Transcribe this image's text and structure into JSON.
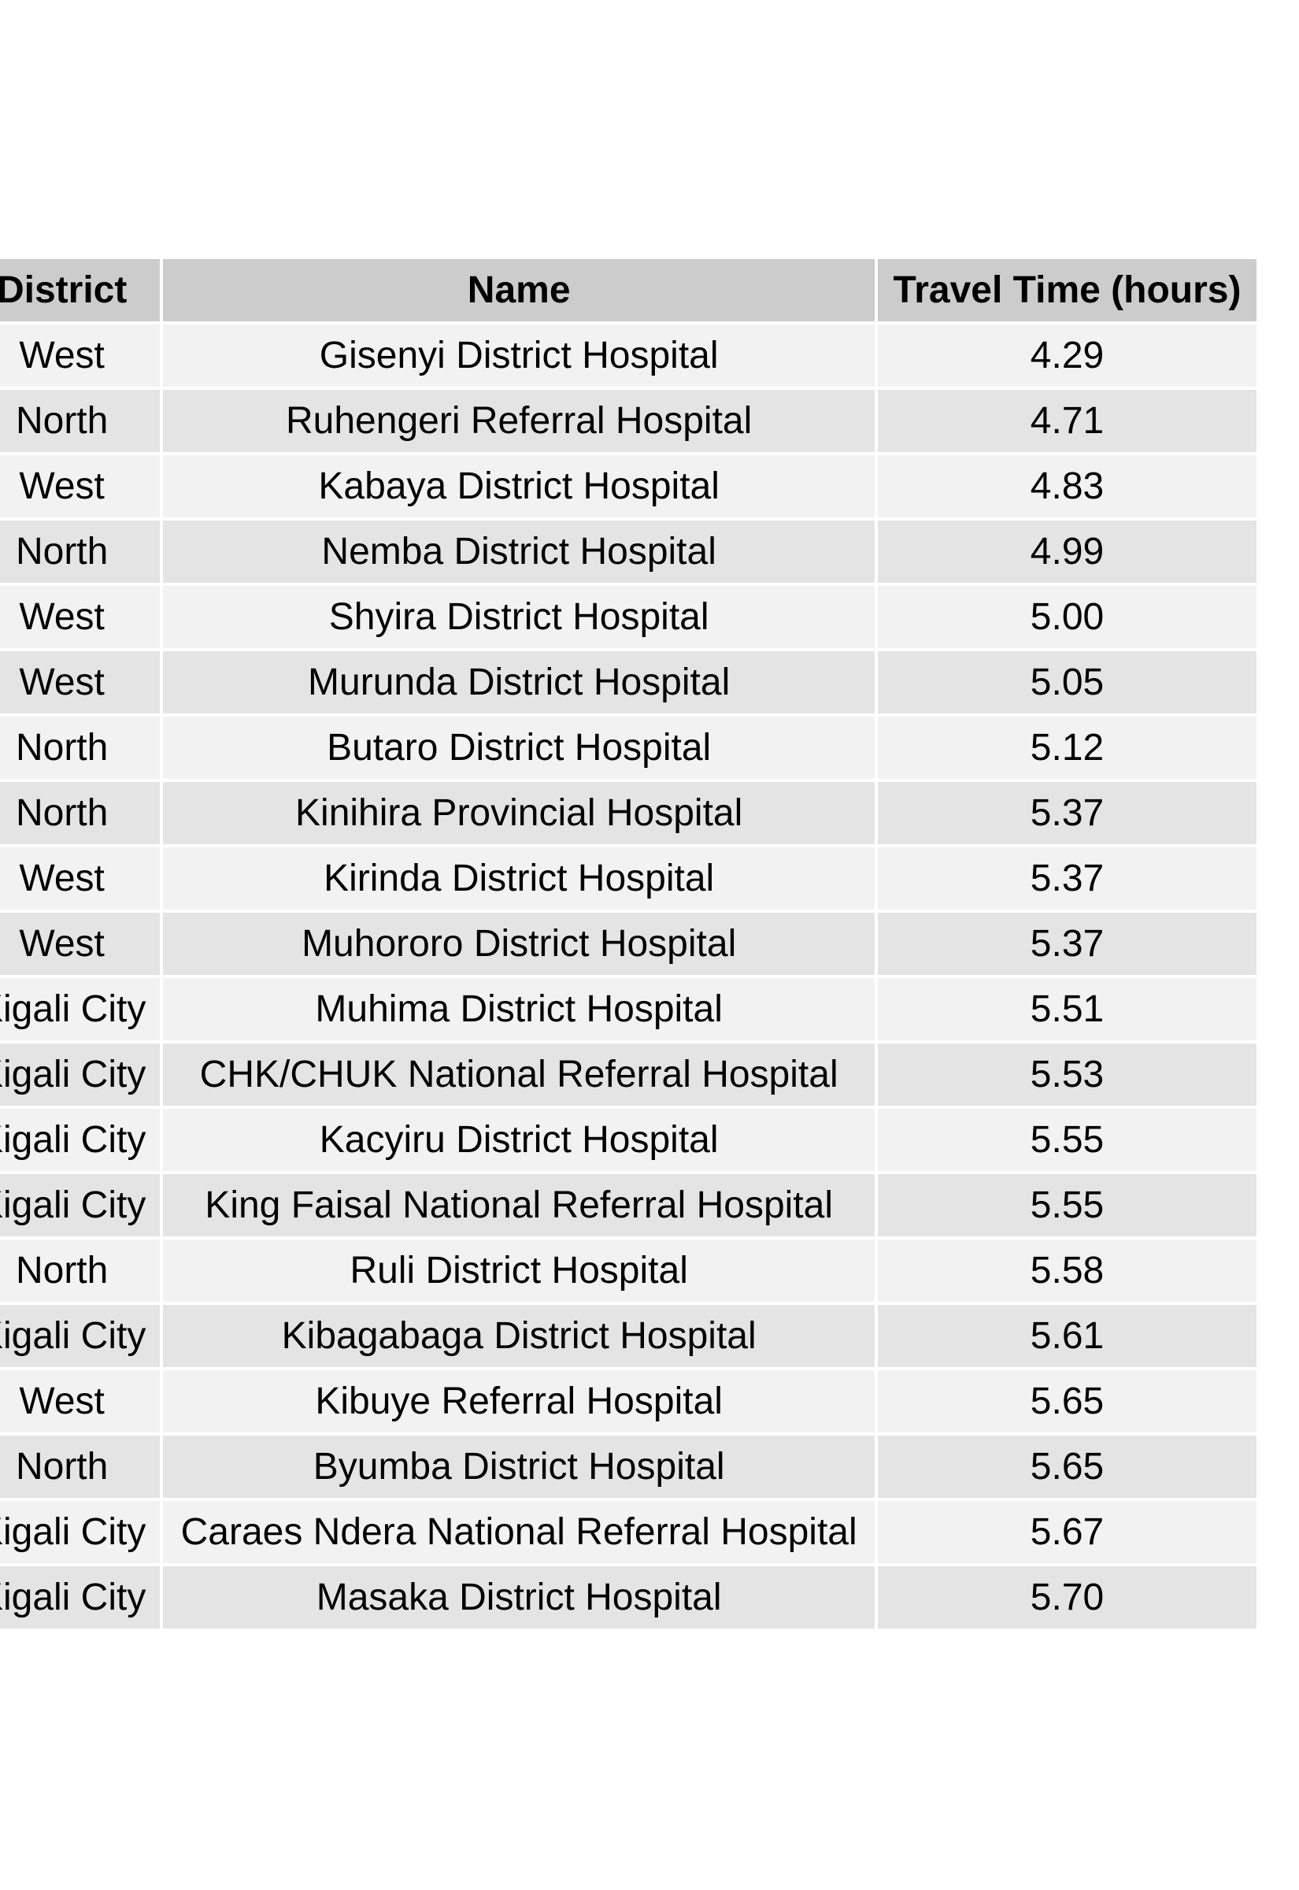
{
  "chart_data": {
    "type": "table",
    "columns": [
      "District",
      "Name",
      "Travel Time (hours)"
    ],
    "rows": [
      [
        "West",
        "Gisenyi District Hospital",
        "4.29"
      ],
      [
        "North",
        "Ruhengeri Referral Hospital",
        "4.71"
      ],
      [
        "West",
        "Kabaya District Hospital",
        "4.83"
      ],
      [
        "North",
        "Nemba District Hospital",
        "4.99"
      ],
      [
        "West",
        "Shyira District Hospital",
        "5.00"
      ],
      [
        "West",
        "Murunda District Hospital",
        "5.05"
      ],
      [
        "North",
        "Butaro District Hospital",
        "5.12"
      ],
      [
        "North",
        "Kinihira Provincial Hospital",
        "5.37"
      ],
      [
        "West",
        "Kirinda District Hospital",
        "5.37"
      ],
      [
        "West",
        "Muhororo District Hospital",
        "5.37"
      ],
      [
        "Kigali City",
        "Muhima District Hospital",
        "5.51"
      ],
      [
        "Kigali City",
        "CHK/CHUK National Referral Hospital",
        "5.53"
      ],
      [
        "Kigali City",
        "Kacyiru District Hospital",
        "5.55"
      ],
      [
        "Kigali City",
        "King Faisal National Referral Hospital",
        "5.55"
      ],
      [
        "North",
        "Ruli District Hospital",
        "5.58"
      ],
      [
        "Kigali City",
        "Kibagabaga District Hospital",
        "5.61"
      ],
      [
        "West",
        "Kibuye Referral Hospital",
        "5.65"
      ],
      [
        "North",
        "Byumba District Hospital",
        "5.65"
      ],
      [
        "Kigali City",
        "Caraes Ndera National Referral Hospital",
        "5.67"
      ],
      [
        "Kigali City",
        "Masaka District Hospital",
        "5.70"
      ]
    ],
    "header_color": "#cccccc",
    "row_colors": [
      "#f2f2f2",
      "#e4e4e4"
    ]
  }
}
